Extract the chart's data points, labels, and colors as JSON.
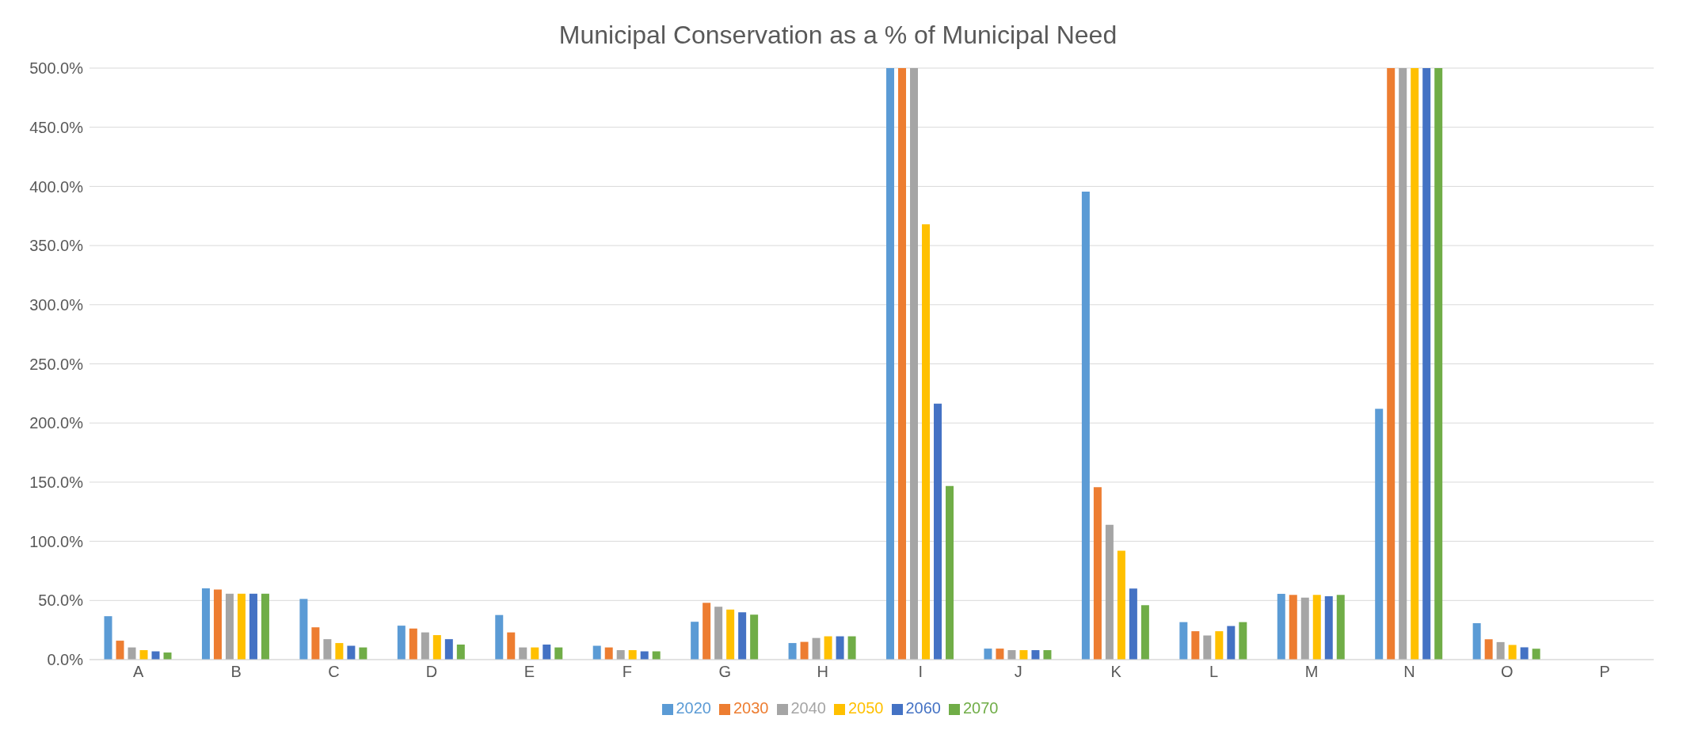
{
  "chart_data": {
    "type": "bar",
    "title": "Municipal Conservation as a % of Municipal Need",
    "categories": [
      "A",
      "B",
      "C",
      "D",
      "E",
      "F",
      "G",
      "H",
      "I",
      "J",
      "K",
      "L",
      "M",
      "N",
      "O",
      "P"
    ],
    "series": [
      {
        "name": "2020",
        "color": "#5b9bd5",
        "values": [
          36.7,
          60.3,
          51.3,
          28.7,
          37.7,
          11.7,
          32,
          14,
          500,
          9.3,
          395.5,
          31.7,
          55.6,
          212,
          30.8,
          null
        ]
      },
      {
        "name": "2030",
        "color": "#ed7d31",
        "values": [
          16,
          59.3,
          27.3,
          26.3,
          23,
          10.3,
          48,
          15,
          500,
          9.3,
          145.7,
          24,
          54.7,
          500,
          17.2,
          null
        ]
      },
      {
        "name": "2040",
        "color": "#a5a5a5",
        "values": [
          10.3,
          55.7,
          17.3,
          23,
          10.3,
          8,
          44.7,
          18.3,
          500,
          8,
          113.9,
          20.4,
          52.4,
          500,
          14.8,
          null
        ]
      },
      {
        "name": "2050",
        "color": "#ffc000",
        "values": [
          8,
          55.7,
          14,
          20.7,
          10.3,
          8,
          42.3,
          19.7,
          368,
          8,
          92,
          24,
          54.7,
          500,
          12.4,
          null
        ]
      },
      {
        "name": "2060",
        "color": "#4472c4",
        "values": [
          7,
          55.7,
          11.7,
          17.3,
          12.7,
          7,
          40,
          19.7,
          216.3,
          8,
          60,
          28.4,
          53.6,
          500,
          10.4,
          null
        ]
      },
      {
        "name": "2070",
        "color": "#70ad47",
        "values": [
          6,
          55.7,
          10.3,
          12.7,
          10.3,
          7,
          38,
          19.7,
          146.7,
          8,
          46,
          31.7,
          54.7,
          500,
          9.2,
          null
        ]
      }
    ],
    "ylim": [
      0,
      500
    ],
    "yticks": [
      {
        "value": 0,
        "label": "0.0%"
      },
      {
        "value": 50,
        "label": "50.0%"
      },
      {
        "value": 100,
        "label": "100.0%"
      },
      {
        "value": 150,
        "label": "150.0%"
      },
      {
        "value": 200,
        "label": "200.0%"
      },
      {
        "value": 250,
        "label": "250.0%"
      },
      {
        "value": 300,
        "label": "300.0%"
      },
      {
        "value": 350,
        "label": "350.0%"
      },
      {
        "value": 400,
        "label": "400.0%"
      },
      {
        "value": 450,
        "label": "450.0%"
      },
      {
        "value": 500,
        "label": "500.0%"
      }
    ],
    "grid": "y",
    "legend": "bottom"
  }
}
